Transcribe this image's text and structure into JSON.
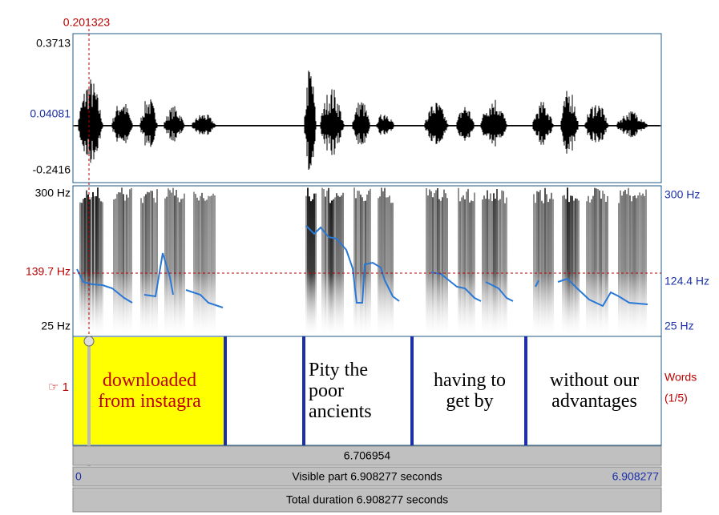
{
  "header": {
    "cursor_time": "0.201323"
  },
  "waveform": {
    "top_label": "0.3713",
    "mid_label": "0.04081",
    "bottom_label": "-0.2416"
  },
  "spectrogram": {
    "left_top": "300 Hz",
    "left_cursor": "139.7 Hz",
    "left_bottom": "25 Hz",
    "right_top": "300 Hz",
    "right_pitch": "124.4 Hz",
    "right_bottom": "25 Hz"
  },
  "tier": {
    "number": "☞ 1",
    "name": "Words",
    "count": "(1/5)",
    "intervals": [
      "downloaded\nfrom instagra",
      "",
      "Pity the\npoor\n ancients",
      "having to\nget by",
      "without our\nadvantages"
    ]
  },
  "bars": {
    "segment": "6.706954",
    "visible_start": "0",
    "visible_part": "Visible part 6.908277 seconds",
    "visible_end": "6.908277",
    "total": "Total duration 6.908277 seconds"
  }
}
